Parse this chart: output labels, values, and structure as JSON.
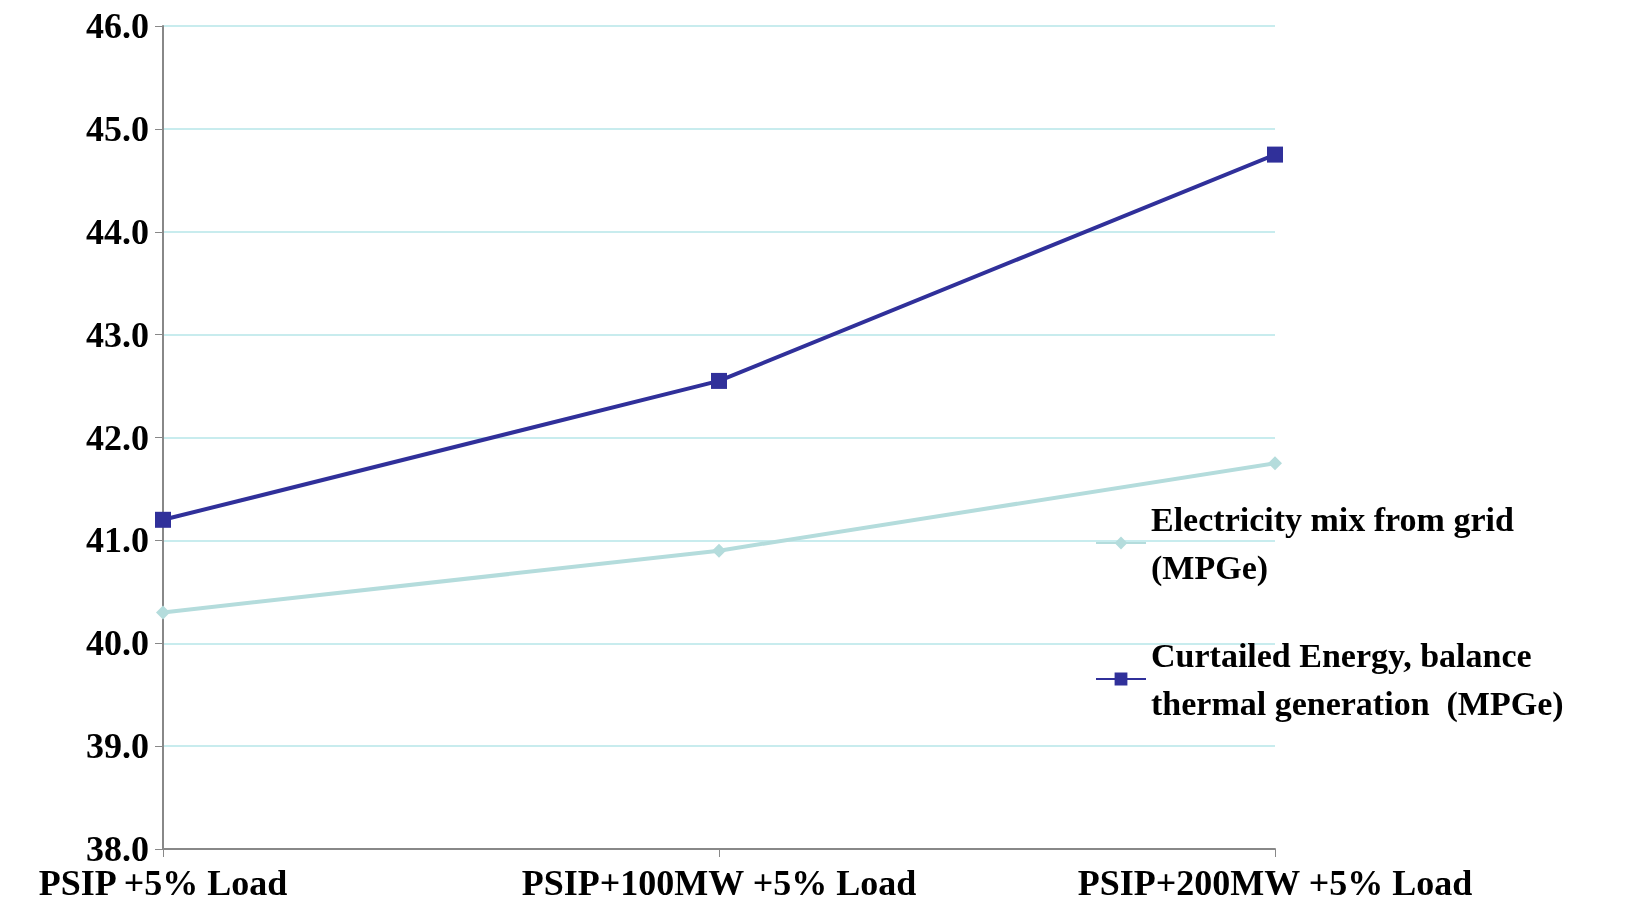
{
  "chart_data": {
    "type": "line",
    "categories": [
      "PSIP +5% Load",
      "PSIP+100MW +5% Load",
      "PSIP+200MW +5% Load"
    ],
    "series": [
      {
        "name": "Electricity mix from grid (MPGe)",
        "color": "#b4dcdc",
        "marker": "diamond",
        "values": [
          40.3,
          40.9,
          41.75
        ]
      },
      {
        "name": "Curtailed Energy, balance thermal generation  (MPGe)",
        "color": "#30309a",
        "marker": "square",
        "values": [
          41.2,
          42.55,
          44.75
        ]
      }
    ],
    "ylim": [
      38,
      46
    ],
    "yticks": [
      {
        "value": 38,
        "label": "38.0"
      },
      {
        "value": 39,
        "label": "39.0"
      },
      {
        "value": 40,
        "label": "40.0"
      },
      {
        "value": 41,
        "label": "41.0"
      },
      {
        "value": 42,
        "label": "42.0"
      },
      {
        "value": 43,
        "label": "43.0"
      },
      {
        "value": 44,
        "label": "44.0"
      },
      {
        "value": 45,
        "label": "45.0"
      },
      {
        "value": 46,
        "label": "46.0"
      }
    ],
    "grid": "y",
    "legend": "right",
    "line_style": "solid"
  }
}
